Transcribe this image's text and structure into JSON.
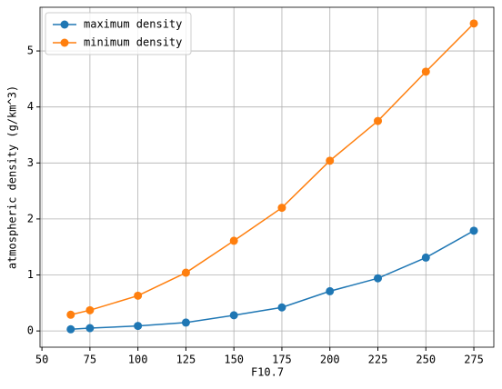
{
  "chart_data": {
    "type": "line",
    "x": [
      65,
      75,
      100,
      125,
      150,
      175,
      200,
      225,
      250,
      275
    ],
    "series": [
      {
        "name": "maximum density",
        "color": "#1f77b4",
        "values": [
          0.03,
          0.05,
          0.09,
          0.15,
          0.28,
          0.42,
          0.71,
          0.94,
          1.31,
          1.79
        ]
      },
      {
        "name": "minimum density",
        "color": "#ff7f0e",
        "values": [
          0.29,
          0.37,
          0.63,
          1.04,
          1.61,
          2.2,
          3.04,
          3.75,
          4.63,
          5.49
        ]
      }
    ],
    "xlabel": "F10.7",
    "ylabel": "atmospheric density (g/km^3)",
    "xlim": [
      49,
      285.4
    ],
    "ylim": [
      -0.29,
      5.78
    ],
    "xticks": [
      50,
      75,
      100,
      125,
      150,
      175,
      200,
      225,
      250,
      275
    ],
    "yticks": [
      0,
      1,
      2,
      3,
      4,
      5
    ],
    "grid": true,
    "legend": "upper left"
  }
}
